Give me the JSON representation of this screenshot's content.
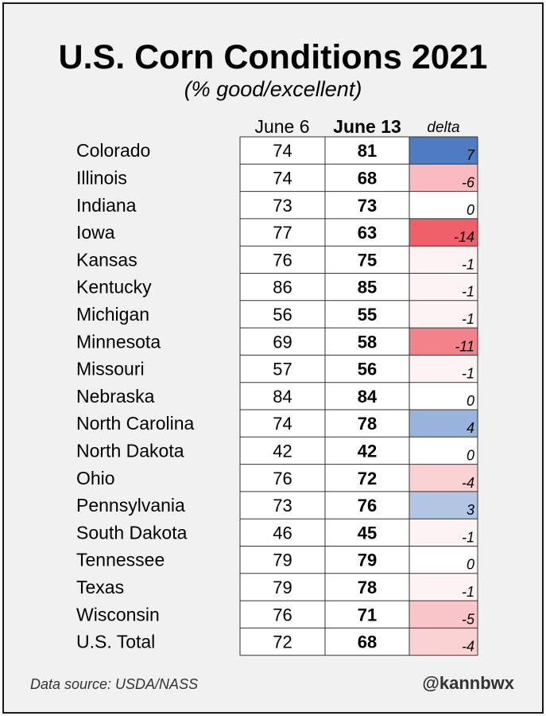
{
  "title": "U.S. Corn Conditions 2021",
  "subtitle": "(% good/excellent)",
  "footer": {
    "source": "Data source: USDA/NASS",
    "handle": "@kannbwx"
  },
  "chart_data": {
    "type": "table",
    "columns": [
      "June 6",
      "June 13",
      "delta"
    ],
    "rows": [
      {
        "label": "Colorado",
        "june6": 74,
        "june13": 81,
        "delta": 7
      },
      {
        "label": "Illinois",
        "june6": 74,
        "june13": 68,
        "delta": -6
      },
      {
        "label": "Indiana",
        "june6": 73,
        "june13": 73,
        "delta": 0
      },
      {
        "label": "Iowa",
        "june6": 77,
        "june13": 63,
        "delta": -14
      },
      {
        "label": "Kansas",
        "june6": 76,
        "june13": 75,
        "delta": -1
      },
      {
        "label": "Kentucky",
        "june6": 86,
        "june13": 85,
        "delta": -1
      },
      {
        "label": "Michigan",
        "june6": 56,
        "june13": 55,
        "delta": -1
      },
      {
        "label": "Minnesota",
        "june6": 69,
        "june13": 58,
        "delta": -11
      },
      {
        "label": "Missouri",
        "june6": 57,
        "june13": 56,
        "delta": -1
      },
      {
        "label": "Nebraska",
        "june6": 84,
        "june13": 84,
        "delta": 0
      },
      {
        "label": "North Carolina",
        "june6": 74,
        "june13": 78,
        "delta": 4
      },
      {
        "label": "North Dakota",
        "june6": 42,
        "june13": 42,
        "delta": 0
      },
      {
        "label": "Ohio",
        "june6": 76,
        "june13": 72,
        "delta": -4
      },
      {
        "label": "Pennsylvania",
        "june6": 73,
        "june13": 76,
        "delta": 3
      },
      {
        "label": "South Dakota",
        "june6": 46,
        "june13": 45,
        "delta": -1
      },
      {
        "label": "Tennessee",
        "june6": 79,
        "june13": 79,
        "delta": 0
      },
      {
        "label": "Texas",
        "june6": 79,
        "june13": 78,
        "delta": -1
      },
      {
        "label": "Wisconsin",
        "june6": 76,
        "june13": 71,
        "delta": -5
      },
      {
        "label": "U.S. Total",
        "june6": 72,
        "june13": 68,
        "delta": -4
      }
    ],
    "colors": {
      "positive": "#4d7cc2",
      "negative": "#f0606a",
      "neutral": "#ffffff"
    }
  }
}
